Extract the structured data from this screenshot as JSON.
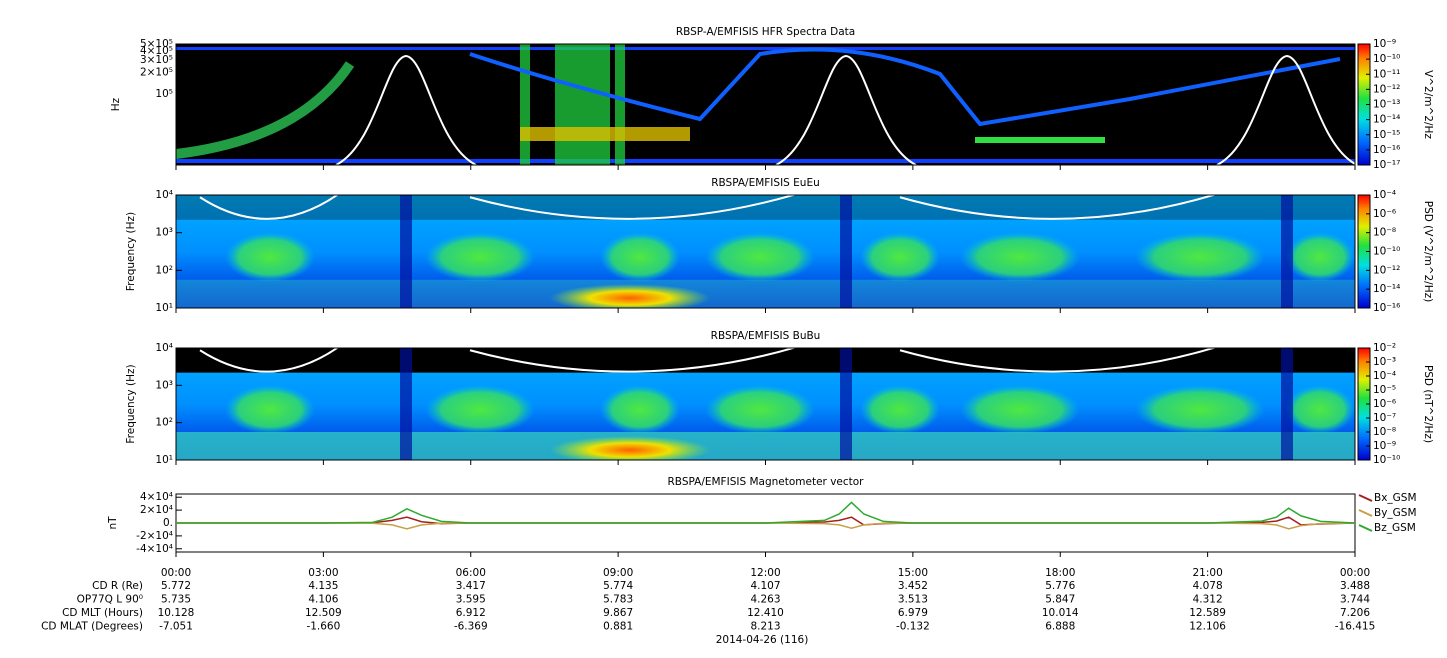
{
  "chart_data": [
    {
      "type": "spectrogram",
      "title": "RBSP-A/EMFISIS  HFR Spectra Data",
      "ylabel": "Hz",
      "yscale": "log",
      "ylim": [
        10000,
        500000
      ],
      "yticks": [
        {
          "value": 500000,
          "label": "5×10⁵"
        },
        {
          "value": 400000,
          "label": "4×10⁵"
        },
        {
          "value": 300000,
          "label": "3×10⁵"
        },
        {
          "value": 200000,
          "label": "2×10⁵"
        },
        {
          "value": 100000,
          "label": "10⁵"
        }
      ],
      "colorbar": {
        "label": "V^2/m^2/Hz",
        "scale": "log",
        "lim": [
          1e-17,
          1e-09
        ],
        "ticks": [
          {
            "value": 1e-09,
            "label": "10⁻⁹"
          },
          {
            "value": 1e-10,
            "label": "10⁻¹⁰"
          },
          {
            "value": 1e-11,
            "label": "10⁻¹¹"
          },
          {
            "value": 1e-12,
            "label": "10⁻¹²"
          },
          {
            "value": 1e-13,
            "label": "10⁻¹³"
          },
          {
            "value": 1e-14,
            "label": "10⁻¹⁴"
          },
          {
            "value": 1e-15,
            "label": "10⁻¹⁵"
          },
          {
            "value": 1e-16,
            "label": "10⁻¹⁶"
          },
          {
            "value": 1e-17,
            "label": "10⁻¹⁷"
          }
        ]
      }
    },
    {
      "type": "spectrogram",
      "title": "RBSPA/EMFISIS  EuEu",
      "ylabel": "Frequency (Hz)",
      "yscale": "log",
      "ylim": [
        10,
        10000
      ],
      "yticks": [
        {
          "value": 10,
          "label": "10¹"
        },
        {
          "value": 100,
          "label": "10²"
        },
        {
          "value": 1000,
          "label": "10³"
        },
        {
          "value": 10000,
          "label": "10⁴"
        }
      ],
      "colorbar": {
        "label": "PSD (V^2/m^2/Hz)",
        "scale": "log",
        "lim": [
          1e-16,
          0.0001
        ],
        "ticks": [
          {
            "value": 0.0001,
            "label": "10⁻⁴"
          },
          {
            "value": 1e-06,
            "label": "10⁻⁶"
          },
          {
            "value": 1e-08,
            "label": "10⁻⁸"
          },
          {
            "value": 1e-10,
            "label": "10⁻¹⁰"
          },
          {
            "value": 1e-12,
            "label": "10⁻¹²"
          },
          {
            "value": 1e-14,
            "label": "10⁻¹⁴"
          },
          {
            "value": 1e-16,
            "label": "10⁻¹⁶"
          }
        ]
      }
    },
    {
      "type": "spectrogram",
      "title": "RBSPA/EMFISIS  BuBu",
      "ylabel": "Frequency (Hz)",
      "yscale": "log",
      "ylim": [
        10,
        10000
      ],
      "yticks": [
        {
          "value": 10,
          "label": "10¹"
        },
        {
          "value": 100,
          "label": "10²"
        },
        {
          "value": 1000,
          "label": "10³"
        },
        {
          "value": 10000,
          "label": "10⁴"
        }
      ],
      "colorbar": {
        "label": "PSD (nT^2/Hz)",
        "scale": "log",
        "lim": [
          1e-10,
          0.01
        ],
        "ticks": [
          {
            "value": 0.01,
            "label": "10⁻²"
          },
          {
            "value": 0.001,
            "label": "10⁻³"
          },
          {
            "value": 0.0001,
            "label": "10⁻⁴"
          },
          {
            "value": 1e-05,
            "label": "10⁻⁵"
          },
          {
            "value": 1e-06,
            "label": "10⁻⁶"
          },
          {
            "value": 1e-07,
            "label": "10⁻⁷"
          },
          {
            "value": 1e-08,
            "label": "10⁻⁸"
          },
          {
            "value": 1e-09,
            "label": "10⁻⁹"
          },
          {
            "value": 1e-10,
            "label": "10⁻¹⁰"
          }
        ]
      }
    },
    {
      "type": "line",
      "title": "RBSPA/EMFISIS  Magnetometer vector",
      "ylabel": "nT",
      "ylim": [
        -45000,
        45000
      ],
      "yticks": [
        {
          "value": 40000,
          "label": "4×10⁴"
        },
        {
          "value": 20000,
          "label": "2×10⁴"
        },
        {
          "value": 0,
          "label": "0."
        },
        {
          "value": -20000,
          "label": "-2×10⁴"
        },
        {
          "value": -40000,
          "label": "-4×10⁴"
        }
      ],
      "x": [
        0,
        3,
        4,
        4.4,
        4.7,
        5,
        5.4,
        6,
        12,
        13.2,
        13.5,
        13.75,
        14,
        14.4,
        15,
        21,
        22.1,
        22.4,
        22.65,
        22.9,
        23.3,
        24
      ],
      "series": [
        {
          "name": "Bx_GSM",
          "color": "#a32020",
          "values": [
            0,
            0,
            300,
            4000,
            9000,
            2000,
            -1000,
            0,
            0,
            1500,
            4000,
            9000,
            -3000,
            -1000,
            0,
            0,
            1000,
            3000,
            9000,
            -3000,
            -1500,
            0
          ]
        },
        {
          "name": "By_GSM",
          "color": "#c8a048",
          "values": [
            0,
            0,
            -300,
            -3000,
            -9000,
            -3000,
            -500,
            0,
            0,
            -1000,
            -3000,
            -8000,
            -3000,
            -500,
            0,
            0,
            -1000,
            -3000,
            -9000,
            -4000,
            -1000,
            0
          ]
        },
        {
          "name": "Bz_GSM",
          "color": "#2eaa2e",
          "values": [
            0,
            0,
            1000,
            9000,
            22000,
            12000,
            2500,
            0,
            0,
            4000,
            14000,
            32000,
            14000,
            2500,
            0,
            0,
            3000,
            9000,
            23000,
            11000,
            2500,
            0
          ]
        }
      ]
    }
  ],
  "time_axis": {
    "xlim": [
      0,
      24
    ],
    "xticks": [
      {
        "value": 0,
        "label": "00:00"
      },
      {
        "value": 3,
        "label": "03:00"
      },
      {
        "value": 6,
        "label": "06:00"
      },
      {
        "value": 9,
        "label": "09:00"
      },
      {
        "value": 12,
        "label": "12:00"
      },
      {
        "value": 15,
        "label": "15:00"
      },
      {
        "value": 18,
        "label": "18:00"
      },
      {
        "value": 21,
        "label": "21:00"
      },
      {
        "value": 24,
        "label": "00:00"
      }
    ],
    "date": "2014-04-26 (116)"
  },
  "ephemeris": [
    {
      "label": "CD R (Re)",
      "values": [
        "5.772",
        "4.135",
        "3.417",
        "5.774",
        "4.107",
        "3.452",
        "5.776",
        "4.078",
        "3.488"
      ]
    },
    {
      "label": "OP77Q L 90⁰",
      "values": [
        "5.735",
        "4.106",
        "3.595",
        "5.783",
        "4.263",
        "3.513",
        "5.847",
        "4.312",
        "3.744"
      ]
    },
    {
      "label": "CD MLT (Hours)",
      "values": [
        "10.128",
        "12.509",
        "6.912",
        "9.867",
        "12.410",
        "6.979",
        "10.014",
        "12.589",
        "7.206"
      ]
    },
    {
      "label": "CD MLAT (Degrees)",
      "values": [
        "-7.051",
        "-1.660",
        "-6.369",
        "0.881",
        "8.213",
        "-0.132",
        "6.888",
        "12.106",
        "-16.415"
      ]
    }
  ]
}
